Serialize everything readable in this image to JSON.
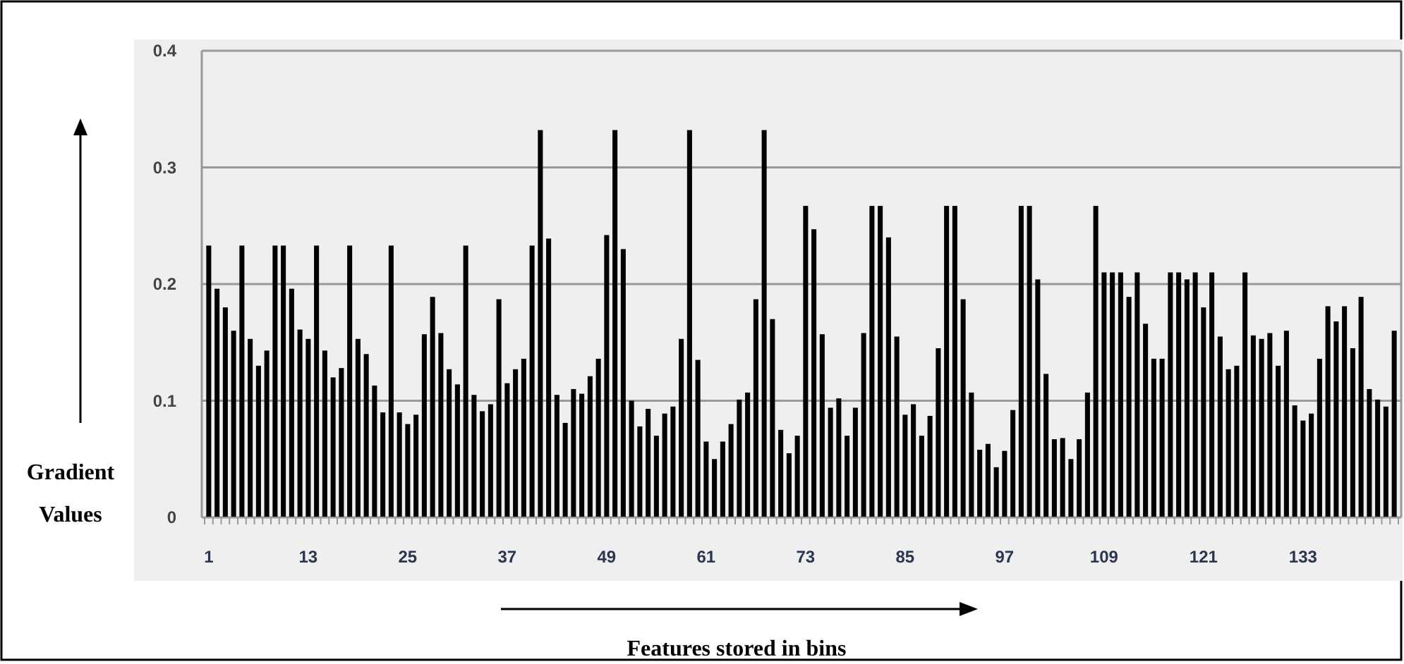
{
  "chart_data": {
    "type": "bar",
    "xlabel": "Features stored in bins",
    "ylabel": "Gradient Values",
    "categories": [
      "1",
      null,
      null,
      null,
      null,
      null,
      null,
      null,
      null,
      null,
      null,
      null,
      "13",
      null,
      null,
      null,
      null,
      null,
      null,
      null,
      null,
      null,
      null,
      null,
      "25",
      null,
      null,
      null,
      null,
      null,
      null,
      null,
      null,
      null,
      null,
      null,
      "37",
      null,
      null,
      null,
      null,
      null,
      null,
      null,
      null,
      null,
      null,
      null,
      "49",
      null,
      null,
      null,
      null,
      null,
      null,
      null,
      null,
      null,
      null,
      null,
      "61",
      null,
      null,
      null,
      null,
      null,
      null,
      null,
      null,
      null,
      null,
      null,
      "73",
      null,
      null,
      null,
      null,
      null,
      null,
      null,
      null,
      null,
      null,
      null,
      "85",
      null,
      null,
      null,
      null,
      null,
      null,
      null,
      null,
      null,
      null,
      null,
      "97",
      null,
      null,
      null,
      null,
      null,
      null,
      null,
      null,
      null,
      null,
      null,
      "109",
      null,
      null,
      null,
      null,
      null,
      null,
      null,
      null,
      null,
      null,
      null,
      "121",
      null,
      null,
      null,
      null,
      null,
      null,
      null,
      null,
      null,
      null,
      null,
      "133",
      null,
      null,
      null,
      null,
      null,
      null,
      null,
      null,
      null,
      null,
      null
    ],
    "values": [
      0.233,
      0.196,
      0.18,
      0.16,
      0.233,
      0.153,
      0.13,
      0.143,
      0.233,
      0.233,
      0.196,
      0.161,
      0.153,
      0.233,
      0.143,
      0.12,
      0.128,
      0.233,
      0.153,
      0.14,
      0.113,
      0.09,
      0.233,
      0.09,
      0.08,
      0.088,
      0.157,
      0.189,
      0.158,
      0.127,
      0.114,
      0.233,
      0.105,
      0.091,
      0.097,
      0.187,
      0.115,
      0.127,
      0.136,
      0.233,
      0.332,
      0.239,
      0.105,
      0.081,
      0.11,
      0.106,
      0.121,
      0.136,
      0.242,
      0.332,
      0.23,
      0.1,
      0.078,
      0.093,
      0.07,
      0.089,
      0.095,
      0.153,
      0.332,
      0.135,
      0.065,
      0.05,
      0.065,
      0.08,
      0.101,
      0.107,
      0.187,
      0.332,
      0.17,
      0.075,
      0.055,
      0.07,
      0.267,
      0.247,
      0.157,
      0.094,
      0.102,
      0.07,
      0.094,
      0.158,
      0.267,
      0.267,
      0.24,
      0.155,
      0.088,
      0.097,
      0.07,
      0.087,
      0.145,
      0.267,
      0.267,
      0.187,
      0.107,
      0.058,
      0.063,
      0.043,
      0.057,
      0.092,
      0.267,
      0.267,
      0.204,
      0.123,
      0.067,
      0.068,
      0.05,
      0.067,
      0.107,
      0.267,
      0.21,
      0.21,
      0.21,
      0.189,
      0.21,
      0.166,
      0.136,
      0.136,
      0.21,
      0.21,
      0.204,
      0.21,
      0.18,
      0.21,
      0.155,
      0.127,
      0.13,
      0.21,
      0.156,
      0.153,
      0.158,
      0.13,
      0.16,
      0.096,
      0.083,
      0.089,
      0.136,
      0.181,
      0.168,
      0.181,
      0.145,
      0.189,
      0.11,
      0.101,
      0.095,
      0.16
    ],
    "color": "#000000",
    "ylim": [
      0,
      0.4
    ],
    "yticks": [
      0,
      0.1,
      0.2,
      0.3,
      0.4
    ],
    "grid": "y"
  }
}
